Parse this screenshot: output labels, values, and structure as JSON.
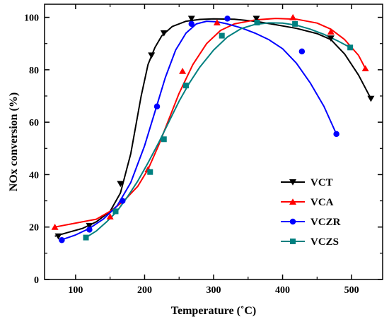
{
  "chart_data": {
    "type": "scatter",
    "title": "",
    "xlabel": "Temperature (˚C)",
    "ylabel": "NOx conversion (%)",
    "xlim": [
      55,
      545
    ],
    "ylim": [
      0,
      105
    ],
    "xticks": [
      100,
      200,
      300,
      400,
      500
    ],
    "yticks": [
      0,
      20,
      40,
      60,
      80,
      100
    ],
    "grid": false,
    "legend_position": "bottom-right",
    "series": [
      {
        "name": "VCT",
        "color": "#000000",
        "marker": "triangle-down",
        "x": [
          75,
          120,
          165,
          210,
          228,
          268,
          362,
          470,
          528
        ],
        "y": [
          16.5,
          20.5,
          36.5,
          85.5,
          94,
          99.5,
          99.5,
          92,
          69
        ],
        "curve_x": [
          70,
          90,
          110,
          130,
          150,
          165,
          180,
          195,
          205,
          215,
          225,
          240,
          260,
          280,
          300,
          330,
          360,
          390,
          420,
          450,
          470,
          490,
          510,
          528
        ],
        "curve_y": [
          16.5,
          18,
          19.5,
          22,
          26,
          33,
          48,
          70,
          82,
          88.5,
          93,
          96.5,
          98.5,
          99.2,
          99.4,
          99.3,
          98.5,
          97.2,
          95.8,
          93.8,
          91.5,
          86,
          78,
          69
        ]
      },
      {
        "name": "VCA",
        "color": "#ff0000",
        "marker": "triangle-up",
        "x": [
          70,
          150,
          205,
          255,
          305,
          415,
          470,
          520
        ],
        "y": [
          20,
          24,
          42,
          79.5,
          98,
          100,
          94.5,
          80.5
        ],
        "curve_x": [
          70,
          100,
          130,
          150,
          170,
          190,
          205,
          220,
          235,
          250,
          270,
          290,
          310,
          330,
          360,
          390,
          420,
          450,
          470,
          490,
          510,
          520
        ],
        "curve_y": [
          20,
          21.5,
          23,
          26,
          30,
          35.5,
          42,
          51,
          61,
          71,
          82,
          90,
          95,
          97.5,
          99,
          99.6,
          99.3,
          97.8,
          95.5,
          91.5,
          85.5,
          80.5
        ]
      },
      {
        "name": "VCZR",
        "color": "#0000ff",
        "marker": "circle",
        "x": [
          80,
          120,
          168,
          218,
          268,
          320,
          428,
          478
        ],
        "y": [
          15,
          19,
          30,
          66,
          97.5,
          99.5,
          87,
          55.5
        ],
        "curve_x": [
          78,
          100,
          120,
          140,
          160,
          180,
          200,
          215,
          230,
          245,
          260,
          275,
          290,
          305,
          320,
          340,
          360,
          380,
          400,
          420,
          440,
          460,
          478
        ],
        "curve_y": [
          15,
          17,
          19.5,
          23,
          28,
          37,
          51,
          64,
          77,
          87.5,
          94,
          97.5,
          98.5,
          98.3,
          97.5,
          96,
          94,
          91.5,
          88,
          82.5,
          75,
          66,
          55.5
        ]
      },
      {
        "name": "VCZS",
        "color": "#008080",
        "marker": "square",
        "x": [
          115,
          158,
          208,
          228,
          260,
          312,
          363,
          418,
          498
        ],
        "y": [
          16,
          26,
          41,
          53.5,
          74,
          93,
          98,
          97.5,
          88.5
        ],
        "curve_x": [
          115,
          130,
          145,
          160,
          175,
          190,
          205,
          220,
          235,
          250,
          265,
          280,
          300,
          320,
          340,
          360,
          380,
          400,
          420,
          440,
          460,
          480,
          498
        ],
        "curve_y": [
          16,
          18.5,
          22,
          26,
          31.5,
          37.5,
          44.5,
          52,
          60,
          68,
          75,
          81,
          87.5,
          92.5,
          95.7,
          97.3,
          97.9,
          97.8,
          97,
          95.5,
          93.5,
          91,
          88.5
        ]
      }
    ]
  }
}
